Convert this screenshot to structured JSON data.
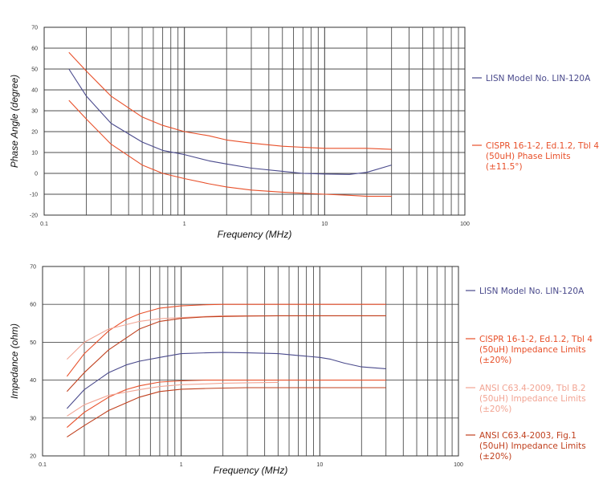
{
  "chart_data": [
    {
      "type": "line",
      "xlabel": "Frequency (MHz)",
      "ylabel": "Phase Angle (degree)",
      "x_scale": "log",
      "xlim": [
        0.1,
        100
      ],
      "ylim": [
        -20,
        70
      ],
      "x_ticks": [
        "0.1",
        "1",
        "10",
        "100"
      ],
      "y_ticks": [
        "-20",
        "-10",
        "0",
        "10",
        "20",
        "30",
        "40",
        "50",
        "60",
        "70"
      ],
      "grid": true,
      "legend_position": "right",
      "legend": [
        {
          "lines": [
            "LISN Model No. LIN-120A"
          ],
          "color": "#4a4a8c"
        },
        {
          "lines": [
            "CISPR 16-1-2, Ed.1.2, Tbl 4",
            "(50uH) Phase Limits",
            "(±11.5°)"
          ],
          "color": "#e8502a"
        }
      ],
      "series": [
        {
          "legend_index": 0,
          "color": "#4a4a8c",
          "x": [
            0.15,
            0.2,
            0.3,
            0.5,
            0.7,
            1,
            1.5,
            2,
            3,
            5,
            7,
            10,
            15,
            20,
            30
          ],
          "y": [
            50,
            37,
            24,
            15,
            11,
            9,
            6,
            4.5,
            2.5,
            1,
            0,
            -0.3,
            -0.5,
            0.5,
            4
          ]
        },
        {
          "legend_index": 1,
          "color": "#e8502a",
          "x": [
            0.15,
            0.2,
            0.3,
            0.5,
            0.7,
            1,
            1.5,
            2,
            3,
            5,
            7,
            10,
            15,
            20,
            30
          ],
          "y": [
            58,
            49,
            37,
            27,
            23,
            20,
            18,
            16,
            14.5,
            13,
            12.5,
            12,
            12,
            12,
            11.5
          ]
        },
        {
          "legend_index": 1,
          "color": "#e8502a",
          "x": [
            0.15,
            0.2,
            0.3,
            0.5,
            0.7,
            1,
            1.5,
            2,
            3,
            5,
            7,
            10,
            15,
            20,
            30
          ],
          "y": [
            35,
            26,
            14,
            4,
            0,
            -2.5,
            -5,
            -6.5,
            -8,
            -9,
            -9.5,
            -10,
            -10.5,
            -11,
            -11
          ]
        }
      ]
    },
    {
      "type": "line",
      "xlabel": "Frequency (MHz)",
      "ylabel": "Impedance (ohm)",
      "x_scale": "log",
      "xlim": [
        0.1,
        100
      ],
      "ylim": [
        20,
        70
      ],
      "x_ticks": [
        "0.1",
        "1",
        "10",
        "100"
      ],
      "y_ticks": [
        "20",
        "30",
        "40",
        "50",
        "60",
        "70"
      ],
      "grid": true,
      "legend_position": "right",
      "legend": [
        {
          "lines": [
            "LISN Model No. LIN-120A"
          ],
          "color": "#4a4a8c"
        },
        {
          "lines": [
            "CISPR 16-1-2, Ed.1.2, Tbl 4",
            "(50uH) Impedance Limits",
            "(±20%)"
          ],
          "color": "#e8502a"
        },
        {
          "lines": [
            "ANSI C63.4-2009, Tbl B.2",
            "(50uH) Impedance Limits",
            "(±20%)"
          ],
          "color": "#f2a493"
        },
        {
          "lines": [
            "ANSI C63.4-2003, Fig.1",
            "(50uH) Impedance Limits",
            "(±20%)"
          ],
          "color": "#c0401e"
        }
      ],
      "series": [
        {
          "legend_index": 0,
          "color": "#4a4a8c",
          "x": [
            0.15,
            0.2,
            0.3,
            0.4,
            0.5,
            0.7,
            1,
            1.5,
            2,
            3,
            5,
            7,
            10,
            12,
            15,
            20,
            30
          ],
          "y": [
            32.5,
            37.5,
            42,
            44,
            45,
            46,
            47,
            47.2,
            47.3,
            47.2,
            47,
            46.5,
            46,
            45.5,
            44.5,
            43.5,
            43
          ]
        },
        {
          "legend_index": 1,
          "color": "#e8502a",
          "x": [
            0.15,
            0.2,
            0.3,
            0.4,
            0.5,
            0.7,
            1,
            1.5,
            2,
            3,
            5,
            7,
            10,
            20,
            30
          ],
          "y": [
            41,
            47,
            53,
            56,
            57.5,
            59,
            59.6,
            59.9,
            60,
            60,
            60,
            60,
            60,
            60,
            60
          ]
        },
        {
          "legend_index": 1,
          "color": "#e8502a",
          "x": [
            0.15,
            0.2,
            0.3,
            0.4,
            0.5,
            0.7,
            1,
            1.5,
            2,
            3,
            5,
            7,
            10,
            20,
            30
          ],
          "y": [
            27.5,
            31.5,
            35.5,
            37.5,
            38.5,
            39.5,
            39.8,
            40,
            40,
            40,
            40,
            40,
            40,
            40,
            40
          ]
        },
        {
          "legend_index": 2,
          "color": "#f2a493",
          "x": [
            0.15,
            0.2,
            0.3,
            0.5,
            0.7,
            1,
            1.5,
            2,
            3,
            5,
            10,
            20,
            30
          ],
          "y": [
            45.5,
            50,
            53.5,
            55.5,
            56.2,
            56.5,
            56.8,
            57,
            57,
            57,
            57,
            57,
            57
          ]
        },
        {
          "legend_index": 2,
          "color": "#f2a493",
          "x": [
            0.15,
            0.2,
            0.3,
            0.5,
            0.7,
            1,
            1.5,
            2,
            3,
            5
          ],
          "y": [
            30.5,
            33.5,
            36,
            37.5,
            38.3,
            38.8,
            39,
            39.2,
            39.3,
            39.4
          ]
        },
        {
          "legend_index": 3,
          "color": "#c0401e",
          "x": [
            0.15,
            0.2,
            0.3,
            0.5,
            0.7,
            1,
            1.5,
            2,
            3,
            5,
            10,
            20,
            30
          ],
          "y": [
            37,
            42,
            48,
            53.5,
            55.5,
            56.3,
            56.7,
            56.8,
            56.9,
            57,
            57,
            57,
            57
          ]
        },
        {
          "legend_index": 3,
          "color": "#c0401e",
          "x": [
            0.15,
            0.2,
            0.3,
            0.5,
            0.7,
            1,
            1.5,
            2,
            3,
            5,
            10,
            20,
            30
          ],
          "y": [
            25,
            28,
            32,
            35.5,
            37,
            37.6,
            37.8,
            37.9,
            38,
            38,
            38,
            38,
            38
          ]
        }
      ]
    }
  ]
}
